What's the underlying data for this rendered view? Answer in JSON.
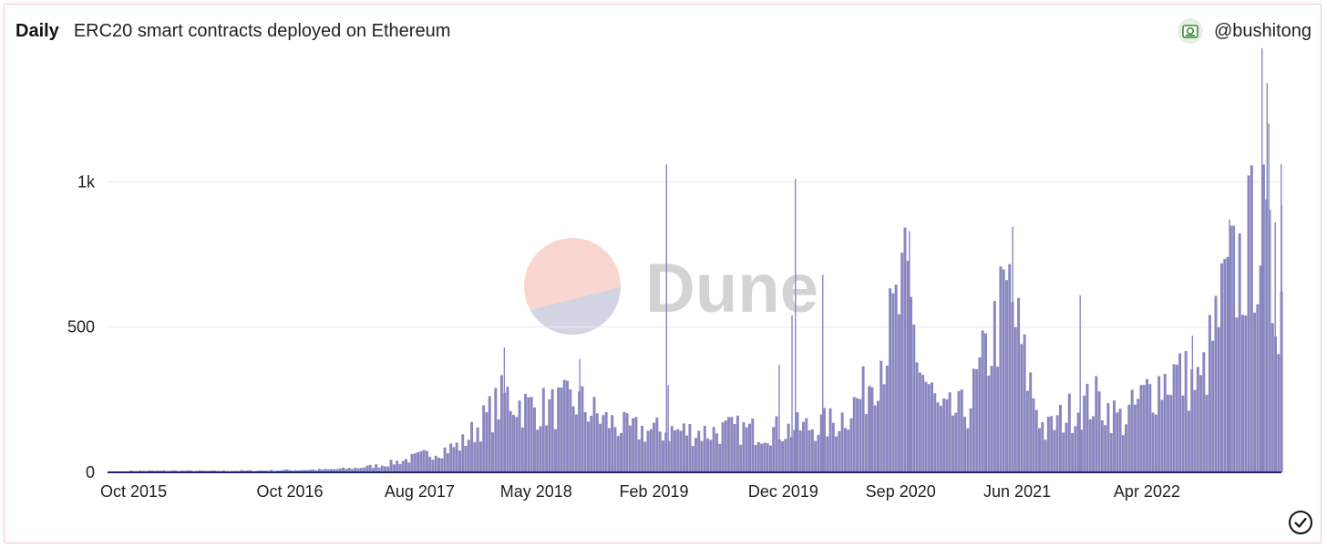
{
  "header": {
    "period": "Daily",
    "title": "ERC20 smart contracts deployed on Ethereum",
    "author": "@bushitong",
    "author_icon": "author-avatar-icon"
  },
  "watermark": {
    "text": "Dune"
  },
  "status_icon": "check-circle-icon",
  "colors": {
    "bar": "#8a87c0",
    "axis": "#25236e",
    "grid": "#ececf2",
    "border": "#f3c7c2"
  },
  "chart_data": {
    "type": "bar",
    "title": "ERC20 smart contracts deployed on Ethereum",
    "xlabel": "",
    "ylabel": "",
    "ylim": [
      0,
      1500
    ],
    "yticks": [
      {
        "value": 0,
        "label": "0"
      },
      {
        "value": 500,
        "label": "500"
      },
      {
        "value": 1000,
        "label": "1k"
      }
    ],
    "xticks": [
      {
        "date": "2015-10-01",
        "label": "Oct 2015"
      },
      {
        "date": "2016-10-01",
        "label": "Oct 2016"
      },
      {
        "date": "2017-08-01",
        "label": "Aug 2017"
      },
      {
        "date": "2018-05-01",
        "label": "May 2018"
      },
      {
        "date": "2019-02-01",
        "label": "Feb 2019"
      },
      {
        "date": "2019-12-01",
        "label": "Dec 2019"
      },
      {
        "date": "2020-09-01",
        "label": "Sep 2020"
      },
      {
        "date": "2021-06-01",
        "label": "Jun 2021"
      },
      {
        "date": "2022-04-01",
        "label": "Apr 2022"
      }
    ],
    "x_range": [
      "2015-08-01",
      "2023-02-10"
    ],
    "grid": true,
    "legend": "none",
    "series": [
      {
        "aggregation": "weekly average of daily values (approx.)",
        "points": [
          {
            "x": "2015-10-01",
            "y": 5
          },
          {
            "x": "2016-01-01",
            "y": 6
          },
          {
            "x": "2016-04-01",
            "y": 5
          },
          {
            "x": "2016-07-01",
            "y": 6
          },
          {
            "x": "2016-10-01",
            "y": 8
          },
          {
            "x": "2017-01-01",
            "y": 10
          },
          {
            "x": "2017-03-01",
            "y": 15
          },
          {
            "x": "2017-05-01",
            "y": 25
          },
          {
            "x": "2017-07-01",
            "y": 45
          },
          {
            "x": "2017-09-01",
            "y": 70
          },
          {
            "x": "2017-11-01",
            "y": 95
          },
          {
            "x": "2018-01-01",
            "y": 190
          },
          {
            "x": "2018-02-15",
            "y": 270
          },
          {
            "x": "2018-04-01",
            "y": 230
          },
          {
            "x": "2018-06-01",
            "y": 225
          },
          {
            "x": "2018-08-01",
            "y": 250
          },
          {
            "x": "2018-10-01",
            "y": 185
          },
          {
            "x": "2018-12-01",
            "y": 150
          },
          {
            "x": "2019-02-01",
            "y": 145
          },
          {
            "x": "2019-04-01",
            "y": 145
          },
          {
            "x": "2019-06-01",
            "y": 140
          },
          {
            "x": "2019-08-01",
            "y": 150
          },
          {
            "x": "2019-10-01",
            "y": 145
          },
          {
            "x": "2019-12-01",
            "y": 150
          },
          {
            "x": "2020-02-01",
            "y": 160
          },
          {
            "x": "2020-04-01",
            "y": 175
          },
          {
            "x": "2020-06-01",
            "y": 270
          },
          {
            "x": "2020-08-01",
            "y": 480
          },
          {
            "x": "2020-09-10",
            "y": 650
          },
          {
            "x": "2020-10-15",
            "y": 360
          },
          {
            "x": "2020-12-01",
            "y": 200
          },
          {
            "x": "2021-02-01",
            "y": 220
          },
          {
            "x": "2021-03-20",
            "y": 420
          },
          {
            "x": "2021-05-10",
            "y": 640
          },
          {
            "x": "2021-06-15",
            "y": 380
          },
          {
            "x": "2021-08-01",
            "y": 140
          },
          {
            "x": "2021-10-01",
            "y": 215
          },
          {
            "x": "2021-12-01",
            "y": 255
          },
          {
            "x": "2022-02-01",
            "y": 180
          },
          {
            "x": "2022-04-01",
            "y": 285
          },
          {
            "x": "2022-06-01",
            "y": 350
          },
          {
            "x": "2022-08-01",
            "y": 300
          },
          {
            "x": "2022-10-01",
            "y": 640
          },
          {
            "x": "2022-11-15",
            "y": 760
          },
          {
            "x": "2022-12-20",
            "y": 880
          },
          {
            "x": "2023-01-20",
            "y": 600
          },
          {
            "x": "2023-02-05",
            "y": 650
          }
        ],
        "spikes": [
          {
            "x": "2018-02-14",
            "y": 430
          },
          {
            "x": "2018-08-10",
            "y": 390
          },
          {
            "x": "2019-03-01",
            "y": 1060
          },
          {
            "x": "2019-03-05",
            "y": 300
          },
          {
            "x": "2019-11-20",
            "y": 370
          },
          {
            "x": "2019-12-20",
            "y": 540
          },
          {
            "x": "2019-12-28",
            "y": 1010
          },
          {
            "x": "2020-03-01",
            "y": 680
          },
          {
            "x": "2020-06-20",
            "y": 300
          },
          {
            "x": "2020-09-20",
            "y": 830
          },
          {
            "x": "2021-05-20",
            "y": 845
          },
          {
            "x": "2021-10-25",
            "y": 610
          },
          {
            "x": "2022-07-15",
            "y": 470
          },
          {
            "x": "2022-10-10",
            "y": 870
          },
          {
            "x": "2022-12-25",
            "y": 1460
          },
          {
            "x": "2023-01-06",
            "y": 1340
          },
          {
            "x": "2023-01-10",
            "y": 1200
          },
          {
            "x": "2023-01-25",
            "y": 860
          },
          {
            "x": "2023-02-08",
            "y": 1060
          },
          {
            "x": "2023-02-09",
            "y": 920
          }
        ]
      }
    ]
  }
}
